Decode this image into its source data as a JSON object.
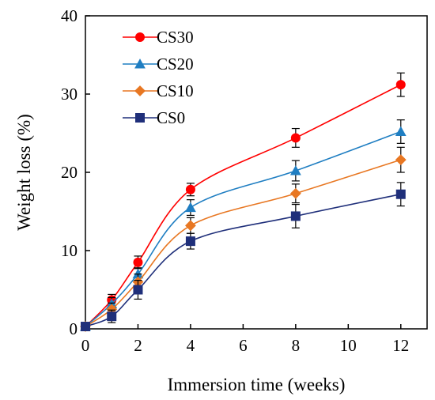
{
  "chart_data": {
    "type": "line",
    "title": "",
    "xlabel": "Immersion time (weeks)",
    "ylabel": "Weight loss (%)",
    "xlim": [
      0,
      13
    ],
    "ylim": [
      0,
      40
    ],
    "xticks": [
      0,
      2,
      4,
      6,
      8,
      10,
      12
    ],
    "yticks": [
      0,
      10,
      20,
      30,
      40
    ],
    "grid": false,
    "legend": "top-left",
    "x": [
      0,
      1,
      2,
      4,
      8,
      12
    ],
    "series": [
      {
        "name": "CS30",
        "color": "#ff0000",
        "marker": "circle",
        "values": [
          0.3,
          3.7,
          8.5,
          17.8,
          24.4,
          31.2
        ],
        "errors": [
          0.3,
          0.7,
          0.8,
          0.8,
          1.2,
          1.5
        ]
      },
      {
        "name": "CS20",
        "color": "#1f7ec2",
        "marker": "triangle",
        "values": [
          0.3,
          3.2,
          7.0,
          15.5,
          20.2,
          25.2
        ],
        "errors": [
          0.3,
          0.8,
          0.8,
          1.0,
          1.3,
          1.5
        ]
      },
      {
        "name": "CS10",
        "color": "#e87722",
        "marker": "diamond",
        "values": [
          0.3,
          2.5,
          6.0,
          13.2,
          17.3,
          21.6
        ],
        "errors": [
          0.3,
          0.8,
          1.0,
          1.0,
          1.2,
          1.6
        ]
      },
      {
        "name": "CS0",
        "color": "#1f2f7a",
        "marker": "square",
        "values": [
          0.3,
          1.6,
          5.0,
          11.2,
          14.4,
          17.2
        ],
        "errors": [
          0.3,
          0.8,
          1.2,
          1.0,
          1.5,
          1.5
        ]
      }
    ]
  }
}
